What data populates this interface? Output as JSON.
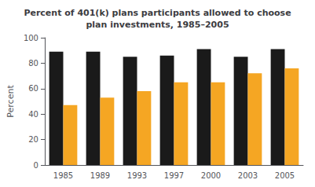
{
  "chart_data": {
    "type": "bar",
    "title": "Percent of 401(k) plans participants allowed to choose\nplan investments, 1985–2005",
    "categories": [
      "1985",
      "1989",
      "1993",
      "1997",
      "2000",
      "2003",
      "2005"
    ],
    "series": [
      {
        "color": "#1a1a1a",
        "values": [
          89,
          89,
          85,
          86,
          91,
          85,
          91
        ]
      },
      {
        "color": "#f5a623",
        "values": [
          47,
          53,
          58,
          65,
          65,
          72,
          76
        ]
      }
    ],
    "ylabel": "Percent",
    "ylim": [
      0,
      100
    ],
    "yticks": [
      0,
      20,
      40,
      60,
      80,
      100
    ],
    "grid": false
  }
}
